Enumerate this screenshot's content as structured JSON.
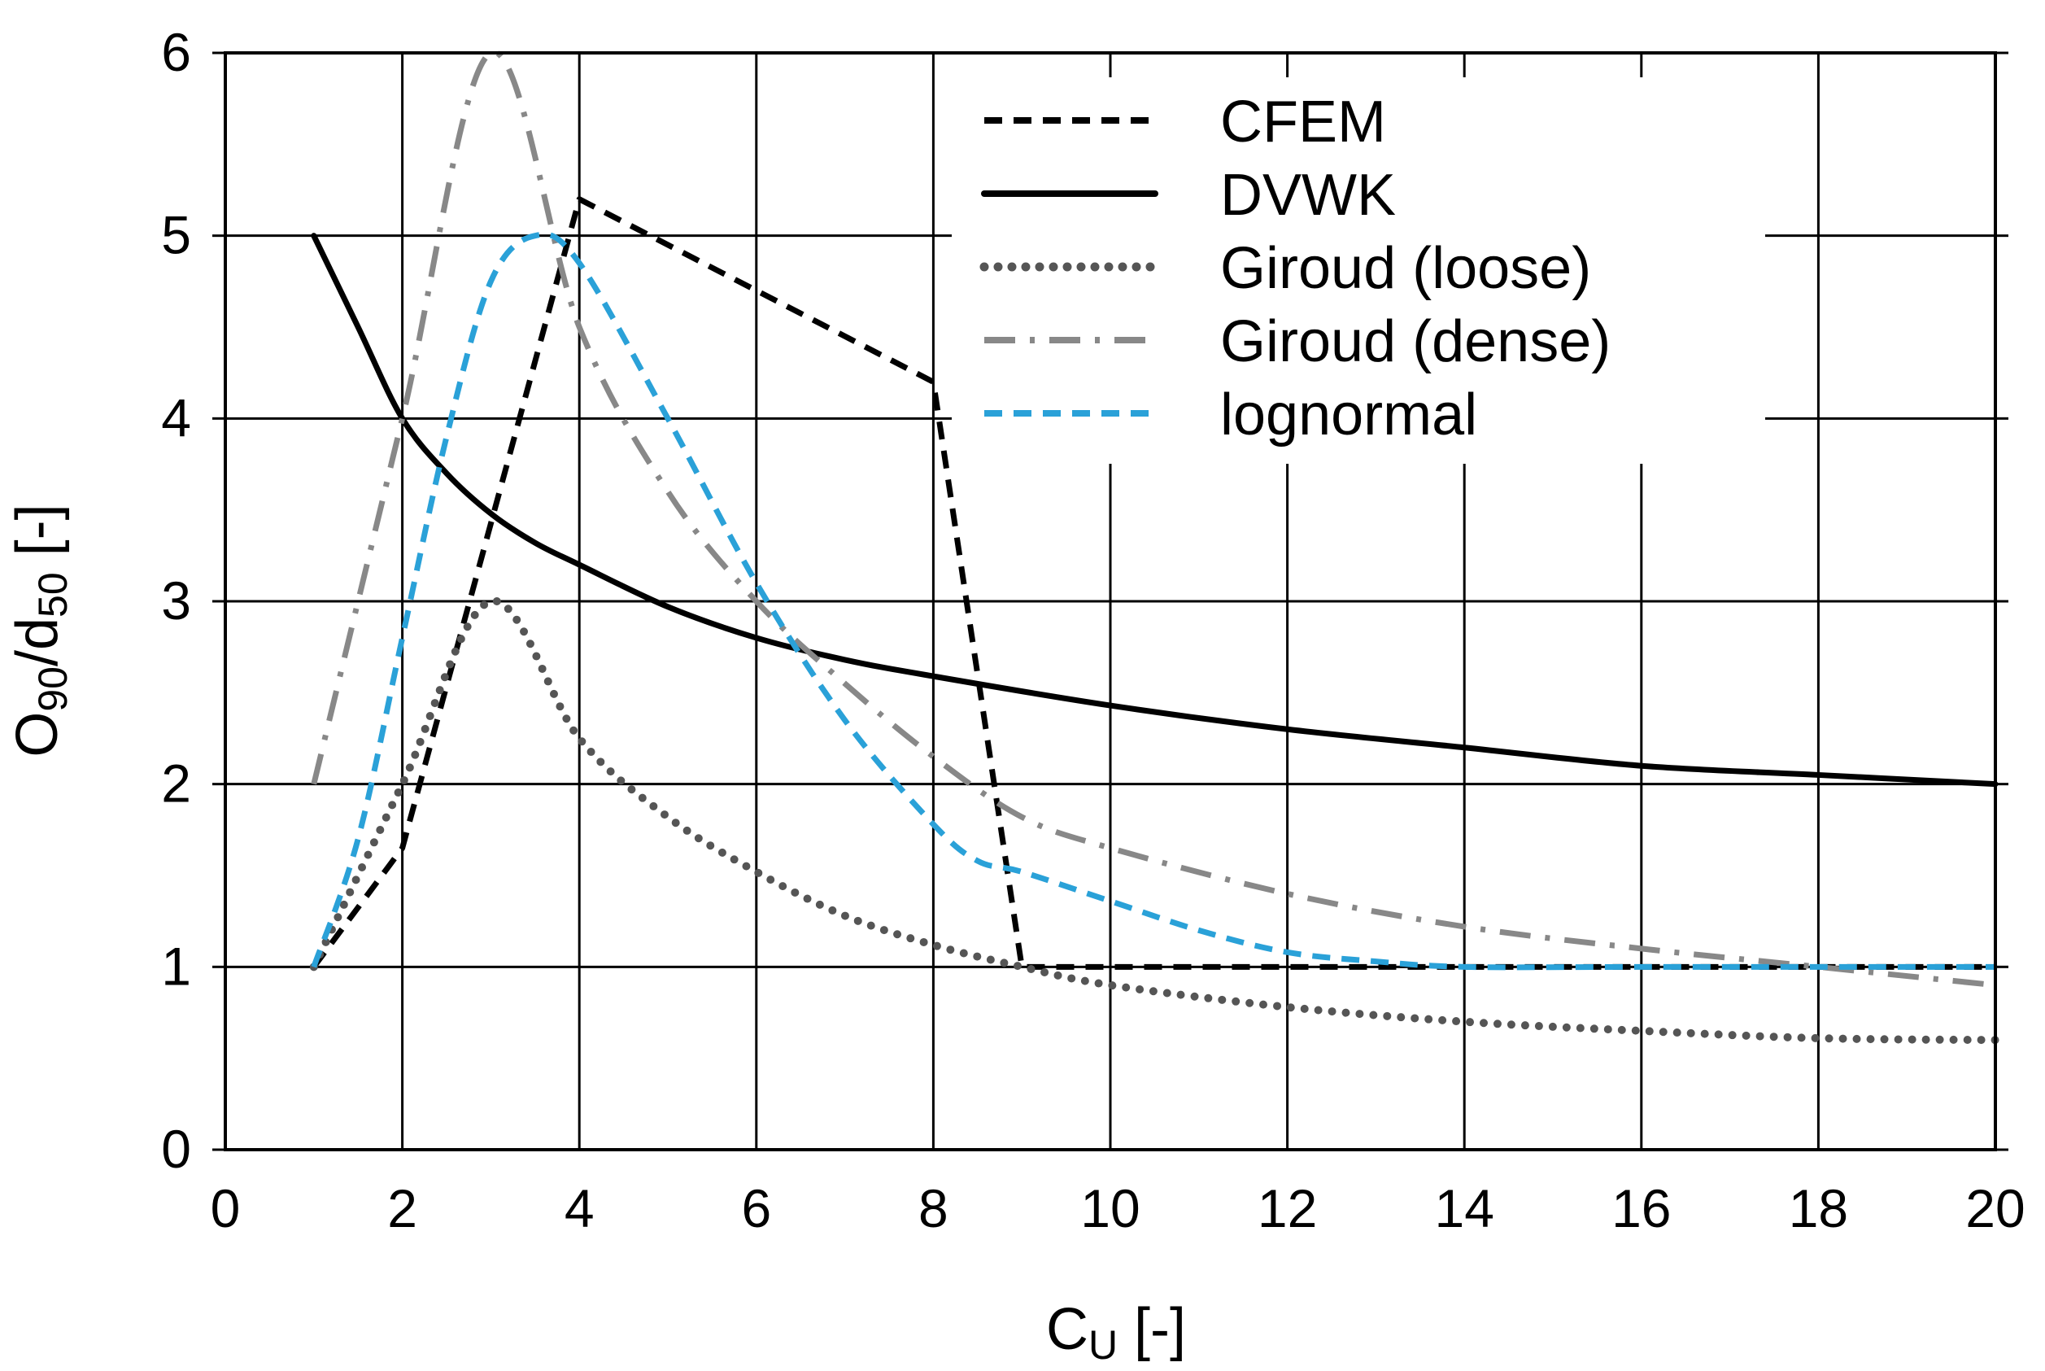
{
  "chart_data": {
    "type": "line",
    "xlabel": {
      "main": "C",
      "sub": "U",
      "unit": " [-]"
    },
    "ylabel": {
      "p1": "O",
      "s1": "90",
      "p2": "/d",
      "s2": "50",
      "unit": " [-]"
    },
    "xlim": [
      0,
      20
    ],
    "ylim": [
      0,
      6
    ],
    "xticks": [
      0,
      2,
      4,
      6,
      8,
      10,
      12,
      14,
      16,
      18,
      20
    ],
    "yticks": [
      0,
      1,
      2,
      3,
      4,
      5,
      6
    ],
    "grid": true,
    "legend_position": "top-right",
    "series": [
      {
        "name": "CFEM",
        "style": "dashed",
        "color": "#000000",
        "x": [
          1,
          2,
          4,
          8,
          9,
          20
        ],
        "y": [
          1,
          1.65,
          5.2,
          4.2,
          1,
          1
        ]
      },
      {
        "name": "DVWK",
        "style": "solid",
        "color": "#000000",
        "x": [
          1,
          1.5,
          2,
          2.5,
          3,
          3.5,
          4,
          5,
          6,
          7,
          8,
          10,
          12,
          14,
          16,
          18,
          20
        ],
        "y": [
          5,
          4.5,
          4,
          3.7,
          3.48,
          3.32,
          3.2,
          2.97,
          2.8,
          2.68,
          2.59,
          2.43,
          2.3,
          2.2,
          2.1,
          2.05,
          2.0
        ]
      },
      {
        "name": "Giroud (loose)",
        "style": "dotted",
        "color": "#555555",
        "x": [
          1,
          2,
          3,
          4,
          5,
          6,
          7,
          8,
          9,
          10,
          12,
          14,
          16,
          18,
          20
        ],
        "y": [
          1,
          2.0,
          3.0,
          2.25,
          1.82,
          1.52,
          1.28,
          1.12,
          1.0,
          0.9,
          0.78,
          0.7,
          0.65,
          0.61,
          0.6
        ]
      },
      {
        "name": "Giroud (dense)",
        "style": "dashdot",
        "color": "#888888",
        "x": [
          1,
          2,
          3,
          4,
          5,
          6,
          7,
          8,
          9,
          10,
          12,
          14,
          16,
          18,
          20
        ],
        "y": [
          2,
          4.0,
          6.0,
          4.5,
          3.6,
          3.0,
          2.55,
          2.15,
          1.82,
          1.65,
          1.4,
          1.22,
          1.1,
          1.0,
          0.9
        ]
      },
      {
        "name": "lognormal",
        "style": "dashed",
        "color": "#2aa1d8",
        "x": [
          1,
          1.5,
          2,
          2.5,
          3,
          3.5,
          4,
          5,
          6,
          7,
          8,
          8.5,
          9,
          10,
          11,
          12,
          13,
          14,
          16,
          18,
          20
        ],
        "y": [
          1,
          1.7,
          2.8,
          3.9,
          4.75,
          5.0,
          4.85,
          4.0,
          3.1,
          2.35,
          1.78,
          1.58,
          1.52,
          1.36,
          1.2,
          1.08,
          1.03,
          1.0,
          1.0,
          1.0,
          1.0
        ]
      }
    ]
  }
}
